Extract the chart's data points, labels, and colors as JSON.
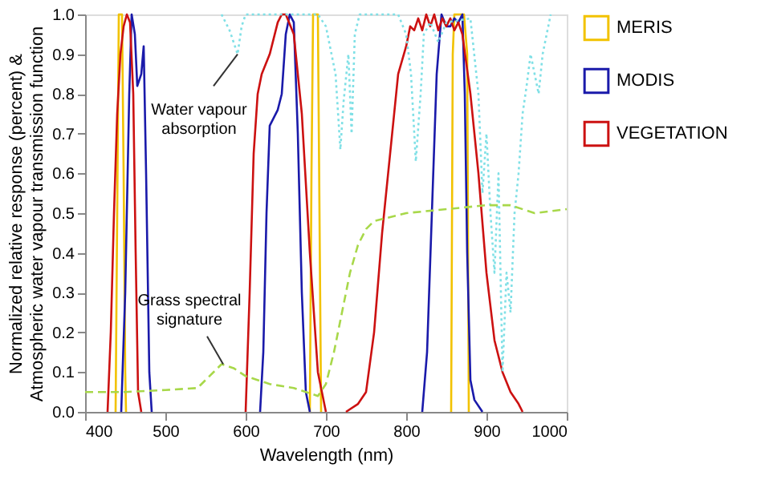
{
  "chart_data": {
    "type": "line",
    "xlabel": "Wavelength (nm)",
    "ylabel": "Normalized relative response (percent) &\nAtmospheric water vapour transmission function",
    "xlim": [
      400,
      1000
    ],
    "xticks": [
      400,
      500,
      600,
      700,
      800,
      900,
      1000
    ],
    "ylim": [
      0,
      1
    ],
    "yticks": [
      {
        "value": 0,
        "label": "0.0"
      },
      0.1,
      0.2,
      0.3,
      0.4,
      0.5,
      0.6,
      0.7,
      0.8,
      0.9,
      {
        "value": 1,
        "label": "1.0"
      }
    ],
    "grid": false,
    "legend": "right",
    "marker": "none",
    "series": [
      {
        "name": "MERIS",
        "color": "#f2c200",
        "line_style": "solid",
        "x": [
          438,
          440,
          442,
          446,
          448,
          450,
          451,
          550,
          680,
          682,
          684,
          690,
          692,
          694,
          750,
          856,
          858,
          860,
          872,
          876,
          878
        ],
        "values": [
          0,
          0.5,
          1.0,
          1.0,
          0.6,
          0.1,
          0,
          null,
          0,
          0.6,
          1.0,
          1.0,
          0.5,
          0,
          null,
          0,
          0.9,
          1.0,
          1.0,
          0.9,
          0
        ]
      },
      {
        "name": "MODIS",
        "color": "#1a1aaa",
        "line_style": "solid",
        "x": [
          445,
          450,
          455,
          458,
          462,
          465,
          470,
          473,
          476,
          480,
          483,
          550,
          618,
          622,
          626,
          630,
          640,
          645,
          650,
          655,
          660,
          665,
          670,
          675,
          680,
          750,
          820,
          826,
          832,
          838,
          844,
          850,
          855,
          860,
          865,
          870,
          873,
          876,
          880,
          885,
          895
        ],
        "values": [
          0,
          0.3,
          0.8,
          1.0,
          0.95,
          0.82,
          0.85,
          0.92,
          0.6,
          0.1,
          0,
          null,
          0,
          0.15,
          0.5,
          0.72,
          0.76,
          0.8,
          0.95,
          1.0,
          0.98,
          0.7,
          0.3,
          0.05,
          0,
          null,
          0,
          0.15,
          0.5,
          0.85,
          1.0,
          0.97,
          0.97,
          0.99,
          0.98,
          1.0,
          0.8,
          0.4,
          0.08,
          0.03,
          0
        ]
      },
      {
        "name": "VEGETATION",
        "color": "#cc1111",
        "line_style": "solid",
        "x": [
          428,
          432,
          436,
          440,
          444,
          448,
          452,
          456,
          460,
          463,
          466,
          470,
          530,
          600,
          605,
          610,
          615,
          620,
          630,
          640,
          645,
          650,
          660,
          670,
          680,
          690,
          700,
          715,
          725,
          740,
          750,
          760,
          770,
          780,
          790,
          800,
          805,
          810,
          815,
          820,
          825,
          830,
          835,
          840,
          845,
          850,
          855,
          860,
          865,
          870,
          880,
          890,
          900,
          910,
          920,
          930,
          940,
          945
        ],
        "values": [
          0,
          0.2,
          0.5,
          0.75,
          0.9,
          0.97,
          1.0,
          0.98,
          0.8,
          0.4,
          0.05,
          0,
          null,
          0,
          0.3,
          0.65,
          0.8,
          0.85,
          0.9,
          0.98,
          1.0,
          1.0,
          0.95,
          0.75,
          0.4,
          0.1,
          0,
          null,
          0,
          0.02,
          0.05,
          0.2,
          0.45,
          0.65,
          0.85,
          0.92,
          0.97,
          0.96,
          0.99,
          0.96,
          1.0,
          0.97,
          1.0,
          0.96,
          0.99,
          0.97,
          0.99,
          0.96,
          0.98,
          0.95,
          0.8,
          0.6,
          0.35,
          0.18,
          0.1,
          0.05,
          0.02,
          0
        ]
      },
      {
        "color": "#80e0e6",
        "line_style": "dotted",
        "x": [
          570,
          580,
          590,
          595,
          600,
          690,
          700,
          705,
          712,
          718,
          722,
          728,
          732,
          736,
          742,
          790,
          800,
          806,
          812,
          818,
          822,
          830,
          840,
          850,
          880,
          890,
          895,
          900,
          905,
          910,
          915,
          920,
          925,
          930,
          935,
          940,
          945,
          950,
          955,
          960,
          965,
          970,
          980
        ],
        "values": [
          1.0,
          0.96,
          0.9,
          0.97,
          1.0,
          1.0,
          0.97,
          0.92,
          0.85,
          0.66,
          0.78,
          0.9,
          0.7,
          0.95,
          1.0,
          1.0,
          0.95,
          0.85,
          0.63,
          0.8,
          0.95,
          0.98,
          0.93,
          0.98,
          0.99,
          0.8,
          0.55,
          0.7,
          0.5,
          0.35,
          0.6,
          0.1,
          0.35,
          0.25,
          0.5,
          0.6,
          0.75,
          0.82,
          0.9,
          0.85,
          0.8,
          0.9,
          1.0
        ]
      },
      {
        "color": "#a8d84a",
        "line_style": "dashed",
        "x": [
          400,
          450,
          500,
          540,
          555,
          570,
          585,
          600,
          630,
          660,
          690,
          700,
          710,
          720,
          730,
          740,
          750,
          760,
          780,
          800,
          850,
          900,
          930,
          960,
          1000
        ],
        "values": [
          0.05,
          0.05,
          0.055,
          0.06,
          0.09,
          0.12,
          0.11,
          0.09,
          0.07,
          0.06,
          0.04,
          0.07,
          0.15,
          0.25,
          0.35,
          0.42,
          0.46,
          0.48,
          0.49,
          0.5,
          0.51,
          0.52,
          0.52,
          0.5,
          0.51
        ]
      }
    ],
    "annotations": [
      {
        "text": "Water vapour\nabsorption",
        "x": 590,
        "y": 0.9
      },
      {
        "text": "Grass spectral\nsignature",
        "x": 572,
        "y": 0.12
      }
    ]
  }
}
